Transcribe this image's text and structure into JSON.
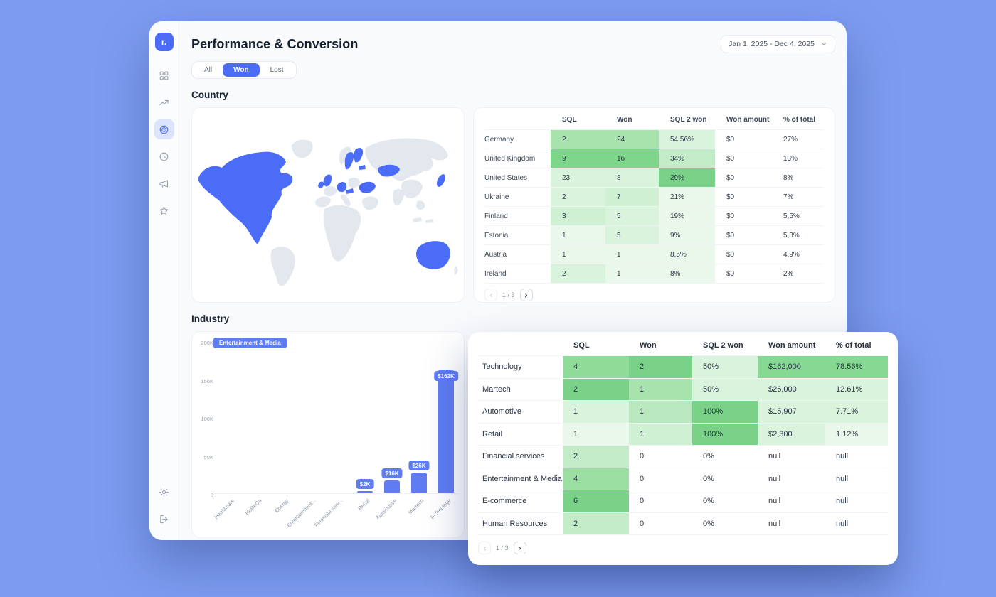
{
  "colors": {
    "page_bg": "#7d9cf0",
    "accent": "#4a6cf7",
    "bar": "#5f7cf3",
    "map_land": "#e3e8ee",
    "map_highlight": "#4a6cf7"
  },
  "brand": {
    "logo": "r."
  },
  "header": {
    "title": "Performance & Conversion",
    "date_range": "Jan 1, 2025 - Dec 4, 2025"
  },
  "filter_tabs": [
    {
      "label": "All",
      "active": false
    },
    {
      "label": "Won",
      "active": true
    },
    {
      "label": "Lost",
      "active": false
    }
  ],
  "sidebar": {
    "items": [
      {
        "id": "dashboard",
        "icon": "grid-icon",
        "active": false
      },
      {
        "id": "analytics",
        "icon": "trending-up-icon",
        "active": false
      },
      {
        "id": "performance",
        "icon": "target-icon",
        "active": true
      },
      {
        "id": "history",
        "icon": "clock-icon",
        "active": false
      },
      {
        "id": "announcements",
        "icon": "megaphone-icon",
        "active": false
      },
      {
        "id": "favorites",
        "icon": "star-icon",
        "active": false
      }
    ],
    "bottom_items": [
      {
        "id": "settings",
        "icon": "gear-icon",
        "active": false
      },
      {
        "id": "logout",
        "icon": "logout-icon",
        "active": false
      }
    ]
  },
  "country": {
    "heading": "Country",
    "map_highlighted": [
      "United States",
      "Canada",
      "United Kingdom",
      "Ireland",
      "Germany",
      "Austria",
      "Ukraine",
      "Finland",
      "Sweden",
      "Estonia",
      "Kazakhstan",
      "Japan",
      "Australia"
    ],
    "table": {
      "columns": [
        "SQL",
        "Won",
        "SQL 2 won",
        "Won amount",
        "% of total"
      ],
      "rows": [
        {
          "name": "Germany",
          "cells": [
            [
              "2",
              "#a8e3ae"
            ],
            [
              "24",
              "#a8e3ae"
            ],
            [
              "54.56%",
              "#daf3dc"
            ],
            [
              "$0",
              ""
            ],
            [
              "27%",
              ""
            ]
          ]
        },
        {
          "name": "United Kingdom",
          "cells": [
            [
              "9",
              "#7ed68a"
            ],
            [
              "16",
              "#7ed68a"
            ],
            [
              "34%",
              "#c3ecc8"
            ],
            [
              "$0",
              ""
            ],
            [
              "13%",
              ""
            ]
          ]
        },
        {
          "name": "United States",
          "cells": [
            [
              "23",
              "#daf3dc"
            ],
            [
              "8",
              "#daf3dc"
            ],
            [
              "29%",
              "#79d287"
            ],
            [
              "$0",
              ""
            ],
            [
              "8%",
              ""
            ]
          ]
        },
        {
          "name": "Ukraine",
          "cells": [
            [
              "2",
              "#daf3dc"
            ],
            [
              "7",
              "#cff0d3"
            ],
            [
              "21%",
              "#e9f8ea"
            ],
            [
              "$0",
              ""
            ],
            [
              "7%",
              ""
            ]
          ]
        },
        {
          "name": "Finland",
          "cells": [
            [
              "3",
              "#cff0d3"
            ],
            [
              "5",
              "#daf3dc"
            ],
            [
              "19%",
              "#e9f8ea"
            ],
            [
              "$0",
              ""
            ],
            [
              "5,5%",
              ""
            ]
          ]
        },
        {
          "name": "Estonia",
          "cells": [
            [
              "1",
              "#e9f8ea"
            ],
            [
              "5",
              "#daf3dc"
            ],
            [
              "9%",
              "#e9f8ea"
            ],
            [
              "$0",
              ""
            ],
            [
              "5,3%",
              ""
            ]
          ]
        },
        {
          "name": "Austria",
          "cells": [
            [
              "1",
              "#e9f8ea"
            ],
            [
              "1",
              "#e9f8ea"
            ],
            [
              "8,5%",
              "#e9f8ea"
            ],
            [
              "$0",
              ""
            ],
            [
              "4,9%",
              ""
            ]
          ]
        },
        {
          "name": "Ireland",
          "cells": [
            [
              "2",
              "#daf3dc"
            ],
            [
              "1",
              "#e9f8ea"
            ],
            [
              "8%",
              "#e9f8ea"
            ],
            [
              "$0",
              ""
            ],
            [
              "2%",
              ""
            ]
          ]
        }
      ]
    },
    "pagination": {
      "label": "1 / 3"
    }
  },
  "industry": {
    "heading": "Industry",
    "chart_data": {
      "type": "bar",
      "categories": [
        "Healthcare",
        "HoReCa",
        "Energy",
        "Entertainment...",
        "Financial serv...",
        "Retail",
        "Automotive",
        "Martech",
        "Technology"
      ],
      "values": [
        0,
        0,
        0,
        0,
        0,
        2000,
        16000,
        26000,
        162000
      ],
      "bar_labels": [
        "",
        "",
        "",
        "",
        "",
        "$2K",
        "$16K",
        "$26K",
        "$162K"
      ],
      "yticks": [
        "200K",
        "150K",
        "100K",
        "50K",
        "0"
      ],
      "ylim": [
        0,
        200000
      ],
      "tooltip": "Entertainment & Media"
    },
    "table": {
      "columns": [
        "SQL",
        "Won",
        "SQL 2 won",
        "Won amount",
        "% of total"
      ],
      "rows": [
        {
          "name": "Technology",
          "cells": [
            [
              "4",
              "#8edc98"
            ],
            [
              "2",
              "#79d287"
            ],
            [
              "50%",
              "#daf3dc"
            ],
            [
              "$162,000",
              "#86d892"
            ],
            [
              "78.56%",
              "#86d892"
            ]
          ]
        },
        {
          "name": "Martech",
          "cells": [
            [
              "2",
              "#79d287"
            ],
            [
              "1",
              "#a8e3ae"
            ],
            [
              "50%",
              "#daf3dc"
            ],
            [
              "$26,000",
              "#daf3dc"
            ],
            [
              "12.61%",
              "#daf3dc"
            ]
          ]
        },
        {
          "name": "Automotive",
          "cells": [
            [
              "1",
              "#daf3dc"
            ],
            [
              "1",
              "#b9e8bf"
            ],
            [
              "100%",
              "#79d287"
            ],
            [
              "$15,907",
              "#daf3dc"
            ],
            [
              "7.71%",
              "#daf3dc"
            ]
          ]
        },
        {
          "name": "Retail",
          "cells": [
            [
              "1",
              "#e9f8ea"
            ],
            [
              "1",
              "#cff0d3"
            ],
            [
              "100%",
              "#79d287"
            ],
            [
              "$2,300",
              "#daf3dc"
            ],
            [
              "1.12%",
              "#e9f8ea"
            ]
          ]
        },
        {
          "name": "Financial services",
          "cells": [
            [
              "2",
              "#c3ecc8"
            ],
            [
              "0",
              ""
            ],
            [
              "0%",
              ""
            ],
            [
              "null",
              ""
            ],
            [
              "null",
              ""
            ]
          ]
        },
        {
          "name": "Entertainment & Media",
          "cells": [
            [
              "4",
              "#9bdfa3"
            ],
            [
              "0",
              ""
            ],
            [
              "0%",
              ""
            ],
            [
              "null",
              ""
            ],
            [
              "null",
              ""
            ]
          ]
        },
        {
          "name": "E-commerce",
          "cells": [
            [
              "6",
              "#79d287"
            ],
            [
              "0",
              ""
            ],
            [
              "0%",
              ""
            ],
            [
              "null",
              ""
            ],
            [
              "null",
              ""
            ]
          ]
        },
        {
          "name": "Human Resources",
          "cells": [
            [
              "2",
              "#c3ecc8"
            ],
            [
              "0",
              ""
            ],
            [
              "0%",
              ""
            ],
            [
              "null",
              ""
            ],
            [
              "null",
              ""
            ]
          ]
        }
      ]
    },
    "pagination": {
      "label": "1 / 3"
    }
  }
}
